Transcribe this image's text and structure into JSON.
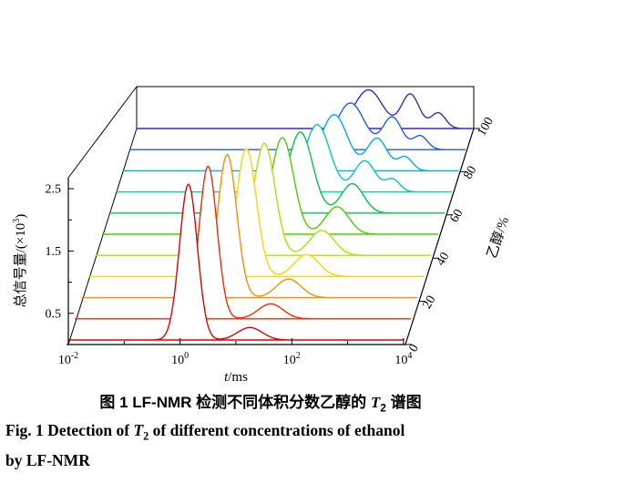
{
  "caption": {
    "zh": {
      "prefix": "图 1   LF-NMR 检测不同体积分数乙醇的 ",
      "t": "T",
      "sub": "2",
      "suffix": " 谱图"
    },
    "en": {
      "prefix": "Fig. 1   Detection of ",
      "t": "T",
      "sub": "2",
      "suffix": " of different concentrations of ethanol",
      "line2": "by LF-NMR"
    }
  },
  "chart_data": {
    "type": "line",
    "subtype": "3d-waterfall",
    "title": "",
    "xlabel": "t/ms",
    "xlabel_parts": {
      "sym": "t",
      "rest": "/ms"
    },
    "ylabel": "总信号量/(×10³)",
    "ylabel_parts": {
      "pre": "总信号量/(×10",
      "sup": "3",
      "post": ")"
    },
    "zlabel": "乙醇/%",
    "x_scale": "log",
    "x_range_ms": [
      0.01,
      10000
    ],
    "ylim": [
      0,
      2.5
    ],
    "z_range_pct": [
      0,
      100
    ],
    "grid": false,
    "x_ticks": [
      {
        "base": "10",
        "exp": "-2",
        "log10": -2
      },
      {
        "base": "10",
        "exp": "0",
        "log10": 0
      },
      {
        "base": "10",
        "exp": "2",
        "log10": 2
      },
      {
        "base": "10",
        "exp": "4",
        "log10": 4
      }
    ],
    "y_tick_labels": [
      "0.5",
      "1.5",
      "2.5"
    ],
    "z_tick_labels": [
      "0",
      "20",
      "40",
      "60",
      "80",
      "100"
    ],
    "series_note": "peaks are [log10(t_center), amplitude(x10^3), log10 sigma] of Gaussian components read from the figure",
    "series": [
      {
        "ethanol_pct": 0,
        "color": "#e60000",
        "peaks": [
          [
            0.15,
            2.5,
            0.16
          ],
          [
            1.25,
            0.2,
            0.22
          ]
        ]
      },
      {
        "ethanol_pct": 10,
        "color": "#fa2800",
        "peaks": [
          [
            0.38,
            2.45,
            0.16
          ],
          [
            1.5,
            0.24,
            0.22
          ]
        ]
      },
      {
        "ethanol_pct": 20,
        "color": "#ff8c00",
        "peaks": [
          [
            0.6,
            2.3,
            0.17
          ],
          [
            1.7,
            0.3,
            0.22
          ]
        ]
      },
      {
        "ethanol_pct": 30,
        "color": "#ffd300",
        "peaks": [
          [
            0.82,
            2.05,
            0.18
          ],
          [
            1.9,
            0.35,
            0.22
          ]
        ]
      },
      {
        "ethanol_pct": 40,
        "color": "#b4e000",
        "peaks": [
          [
            1.02,
            1.8,
            0.19
          ],
          [
            2.05,
            0.4,
            0.22
          ]
        ]
      },
      {
        "ethanol_pct": 50,
        "color": "#46d200",
        "peaks": [
          [
            1.22,
            1.55,
            0.2
          ],
          [
            2.2,
            0.44,
            0.21
          ]
        ]
      },
      {
        "ethanol_pct": 60,
        "color": "#00c846",
        "peaks": [
          [
            1.42,
            1.3,
            0.22
          ],
          [
            2.35,
            0.47,
            0.2
          ]
        ]
      },
      {
        "ethanol_pct": 70,
        "color": "#00ccb4",
        "peaks": [
          [
            1.6,
            1.08,
            0.23
          ],
          [
            2.45,
            0.5,
            0.19
          ],
          [
            2.95,
            0.2,
            0.13
          ]
        ]
      },
      {
        "ethanol_pct": 80,
        "color": "#00aaee",
        "peaks": [
          [
            1.78,
            0.9,
            0.24
          ],
          [
            2.55,
            0.52,
            0.18
          ],
          [
            3.05,
            0.22,
            0.13
          ]
        ]
      },
      {
        "ethanol_pct": 90,
        "color": "#1e5aff",
        "peaks": [
          [
            1.95,
            0.75,
            0.25
          ],
          [
            2.7,
            0.52,
            0.17
          ],
          [
            3.2,
            0.22,
            0.13
          ]
        ]
      },
      {
        "ethanol_pct": 100,
        "color": "#3c28c8",
        "peaks": [
          [
            2.15,
            0.62,
            0.25
          ],
          [
            2.9,
            0.55,
            0.16
          ],
          [
            3.4,
            0.25,
            0.13
          ]
        ]
      }
    ]
  }
}
